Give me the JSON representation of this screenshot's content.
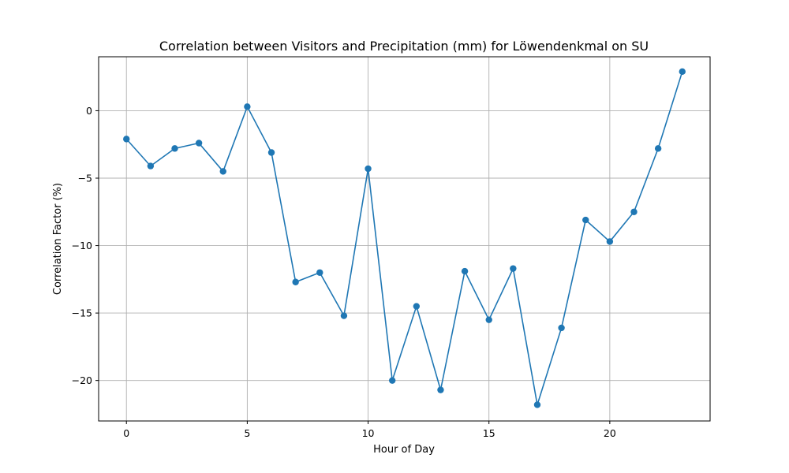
{
  "chart_data": {
    "type": "line",
    "title": "Correlation between Visitors and Precipitation (mm) for Löwendenkmal on SU",
    "xlabel": "Hour of Day",
    "ylabel": "Correlation Factor (%)",
    "xlim": [
      -1.15,
      24.15
    ],
    "ylim": [
      -23,
      4
    ],
    "xticks": [
      0,
      5,
      10,
      15,
      20
    ],
    "yticks": [
      0,
      -5,
      -10,
      -15,
      -20
    ],
    "grid": true,
    "color": "#1f77b4",
    "marker": "circle",
    "series": [
      {
        "x": [
          0,
          1,
          2,
          3,
          4,
          5,
          6,
          7,
          8,
          9,
          10,
          11,
          12,
          13,
          14,
          15,
          16,
          17,
          18,
          19,
          20,
          21,
          22,
          23
        ],
        "values": [
          -2.1,
          -4.1,
          -2.8,
          -2.4,
          -4.5,
          0.3,
          -3.1,
          -12.7,
          -12.0,
          -15.2,
          -4.3,
          -20.0,
          -14.5,
          -20.7,
          -11.9,
          -15.5,
          -11.7,
          -21.8,
          -16.1,
          -8.1,
          -9.7,
          -7.5,
          -2.8,
          2.9
        ]
      }
    ]
  }
}
